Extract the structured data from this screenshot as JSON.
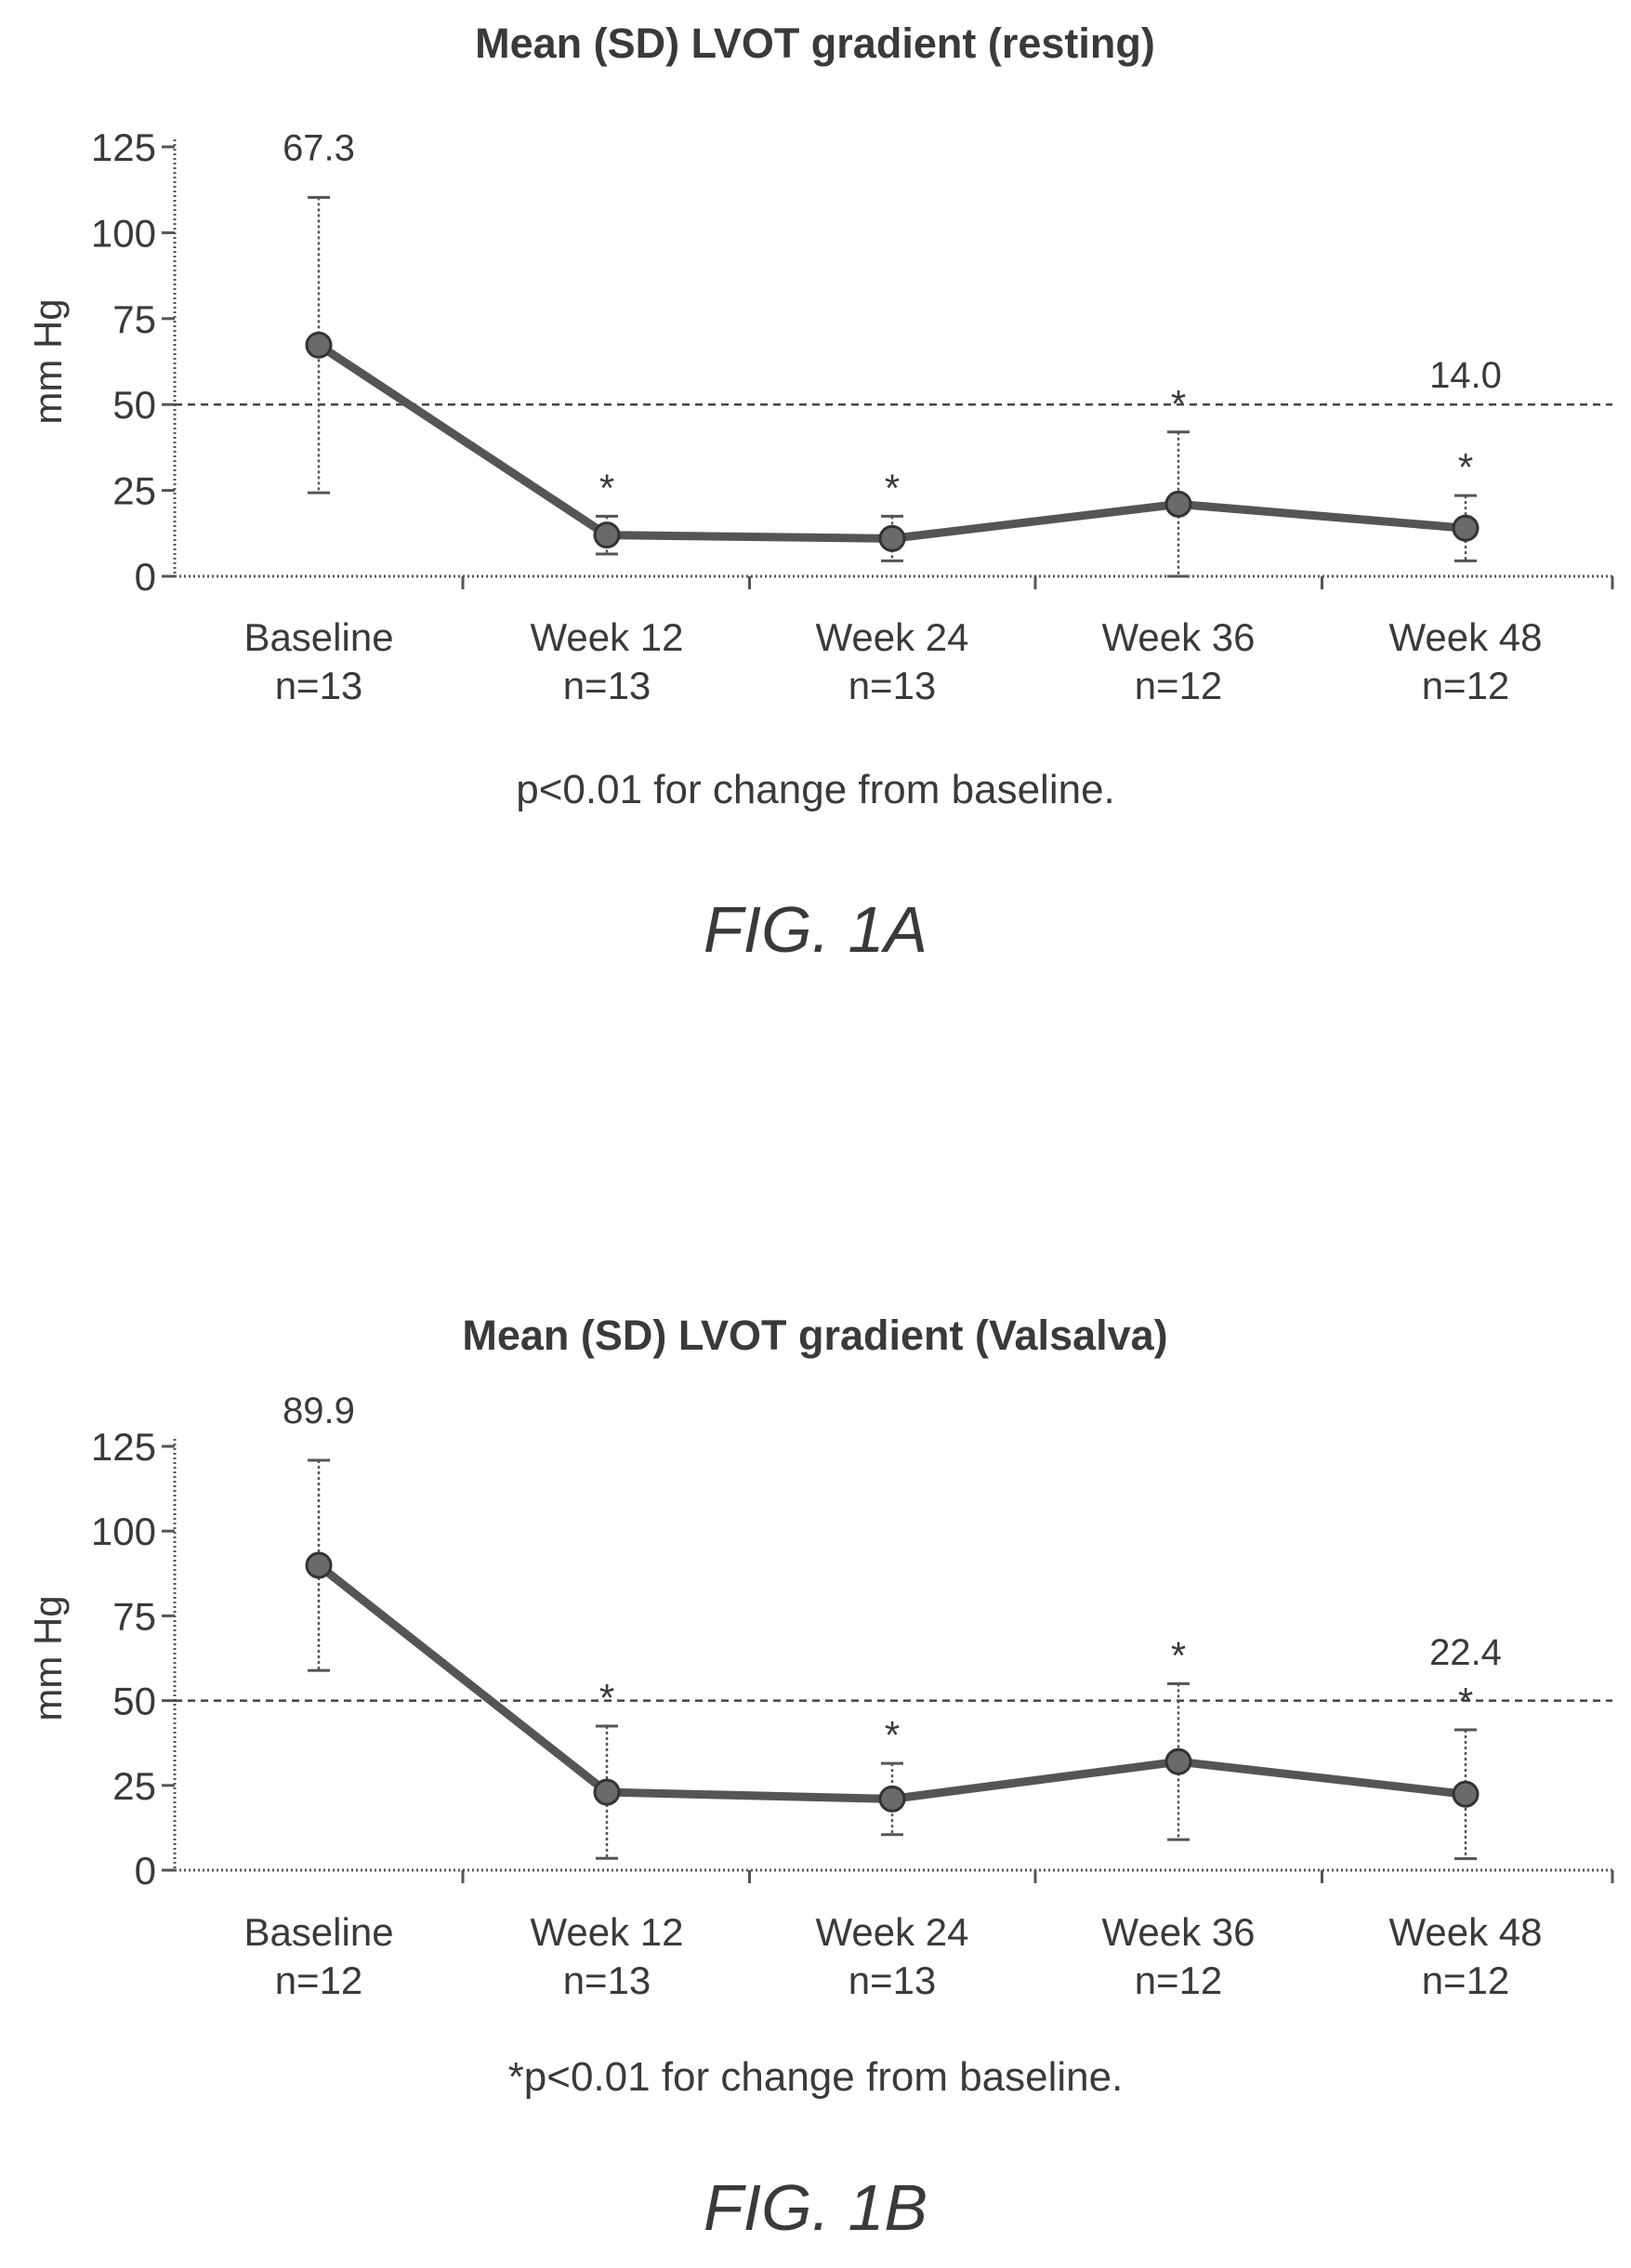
{
  "chart_data": [
    {
      "type": "line",
      "title": "Mean (SD) LVOT gradient (resting)",
      "xlabel": "",
      "ylabel": "mm Hg",
      "ylim": [
        0,
        125
      ],
      "yticks": [
        0,
        25,
        50,
        75,
        100,
        125
      ],
      "categories": [
        "Baseline",
        "Week 12",
        "Week 24",
        "Week 36",
        "Week 48"
      ],
      "n_labels": [
        "n=13",
        "n=13",
        "n=13",
        "n=12",
        "n=12"
      ],
      "series": [
        {
          "values": [
            67.3,
            12,
            11,
            21,
            14.0
          ],
          "sd": [
            43,
            5.5,
            6.5,
            21,
            9.5
          ],
          "significant": [
            false,
            true,
            true,
            true,
            true
          ]
        }
      ],
      "reference_line": 50,
      "data_labels": [
        {
          "index": 0,
          "text": "67.3"
        },
        {
          "index": 4,
          "text": "14.0"
        }
      ],
      "footnote": "p<0.01 for change from baseline.",
      "figure_label": "FIG. 1A",
      "grid": false
    },
    {
      "type": "line",
      "title": "Mean (SD) LVOT gradient (Valsalva)",
      "xlabel": "",
      "ylabel": "mm Hg",
      "ylim": [
        0,
        125
      ],
      "yticks": [
        0,
        25,
        50,
        75,
        100,
        125
      ],
      "categories": [
        "Baseline",
        "Week 12",
        "Week 24",
        "Week 36",
        "Week 48"
      ],
      "n_labels": [
        "n=12",
        "n=13",
        "n=13",
        "n=12",
        "n=12"
      ],
      "series": [
        {
          "values": [
            89.9,
            23,
            21,
            32,
            22.4
          ],
          "sd": [
            31,
            19.5,
            10.5,
            23,
            19
          ],
          "significant": [
            false,
            true,
            true,
            true,
            true
          ]
        }
      ],
      "reference_line": 50,
      "data_labels": [
        {
          "index": 0,
          "text": "89.9"
        },
        {
          "index": 4,
          "text": "22.4"
        }
      ],
      "footnote": "*p<0.01 for change from baseline.",
      "figure_label": "FIG. 1B",
      "grid": false
    }
  ],
  "colors": {
    "line": "#555555",
    "marker": "#6a6a6a",
    "text": "#3a3a3a"
  },
  "star_symbol": "*"
}
